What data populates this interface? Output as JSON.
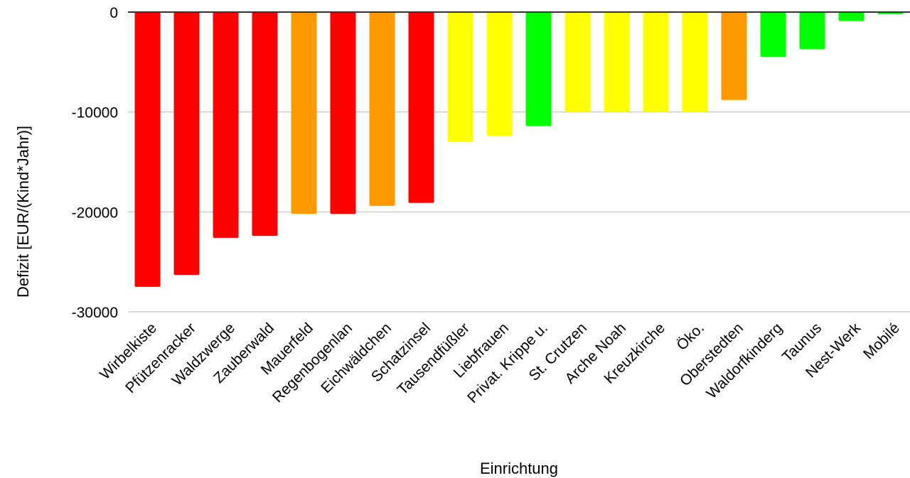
{
  "chart_data": {
    "type": "bar",
    "title": "",
    "xlabel": "Einrichtung",
    "ylabel": "Defizit [EUR/(Kind*Jahr)]",
    "ylim": [
      -30000,
      0
    ],
    "yticks": [
      0,
      -10000,
      -20000,
      -30000
    ],
    "ytick_labels": [
      "0",
      "-10000",
      "-20000",
      "-30000"
    ],
    "grid": true,
    "legend": "none",
    "categories": [
      "Wirbelkiste",
      "Pfützenracker",
      "Waldzwerge",
      "Zauberwald",
      "Mauerfeld",
      "Regenbogenlan",
      "Eichwäldchen",
      "Schatzinsel",
      "Tausendfüßler",
      "Liebfrauen",
      "Privat. Krippe u.",
      "St. Crutzen",
      "Arche Noah",
      "Kreuzkirche",
      "Öko.",
      "Oberstedten",
      "Waldorfkinderg",
      "Taunus",
      "Nest-Werk",
      "Mobilé"
    ],
    "values": [
      -27500,
      -26300,
      -22600,
      -22400,
      -20200,
      -20200,
      -19400,
      -19100,
      -13000,
      -12400,
      -11400,
      -10000,
      -10000,
      -10000,
      -10000,
      -8800,
      -4500,
      -3700,
      -900,
      -200
    ],
    "colors": [
      "#ff0000",
      "#ff0000",
      "#ff0000",
      "#ff0000",
      "#ff9900",
      "#ff0000",
      "#ff9900",
      "#ff0000",
      "#ffff00",
      "#ffff00",
      "#00ff00",
      "#ffff00",
      "#ffff00",
      "#ffff00",
      "#ffff00",
      "#ff9900",
      "#00ff00",
      "#00ff00",
      "#00ff00",
      "#00ff00"
    ],
    "gridline_color": "#cccccc",
    "zero_line_color": "#333333"
  }
}
